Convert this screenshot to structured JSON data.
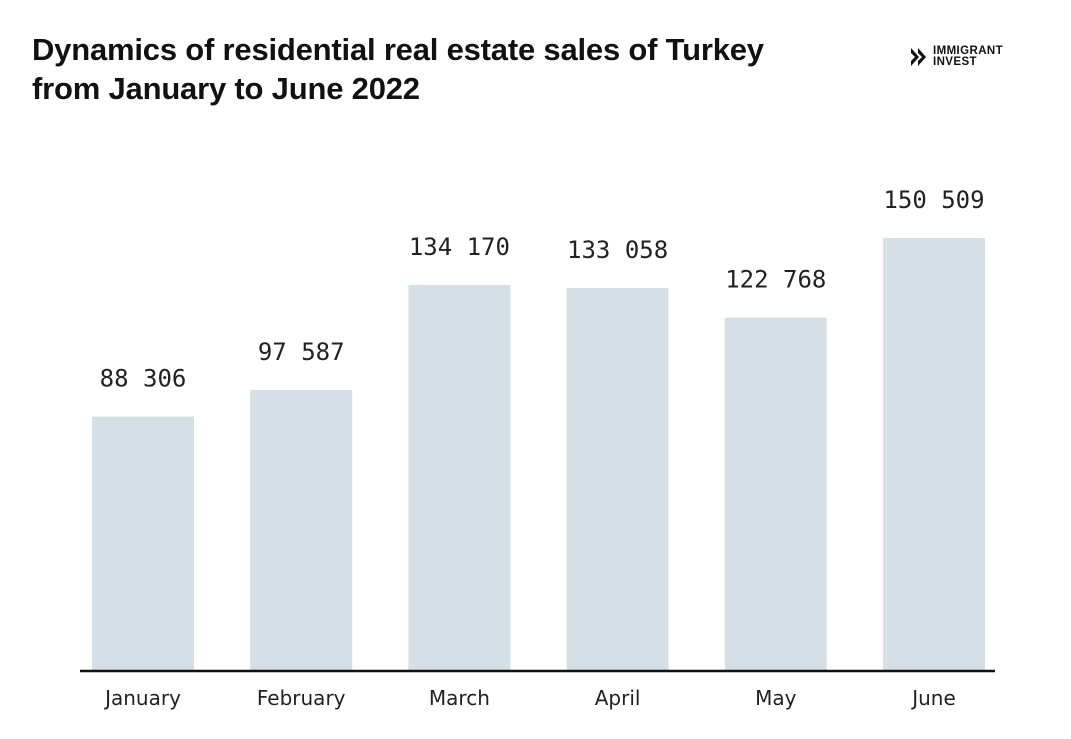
{
  "header": {
    "title_line1": "Dynamics of residential real estate sales of Turkey",
    "title_line2": "from January to June 2022"
  },
  "brand": {
    "line1": "IMMIGRANT",
    "line2": "INVEST",
    "icon": "double-chevron-right-icon"
  },
  "colors": {
    "bar": "#d5dfe6",
    "axis": "#111111",
    "text": "#222222"
  },
  "chart_data": {
    "type": "bar",
    "title": "Dynamics of residential real estate sales of Turkey from January to June 2022",
    "categories": [
      "January",
      "February",
      "March",
      "April",
      "May",
      "June"
    ],
    "values": [
      88306,
      97587,
      134170,
      133058,
      122768,
      150509
    ],
    "value_labels": [
      "88 306",
      "97 587",
      "134 170",
      "133 058",
      "122 768",
      "150 509"
    ],
    "xlabel": "",
    "ylabel": "",
    "ylim": [
      0,
      160000
    ],
    "grid": false,
    "legend": "none"
  }
}
